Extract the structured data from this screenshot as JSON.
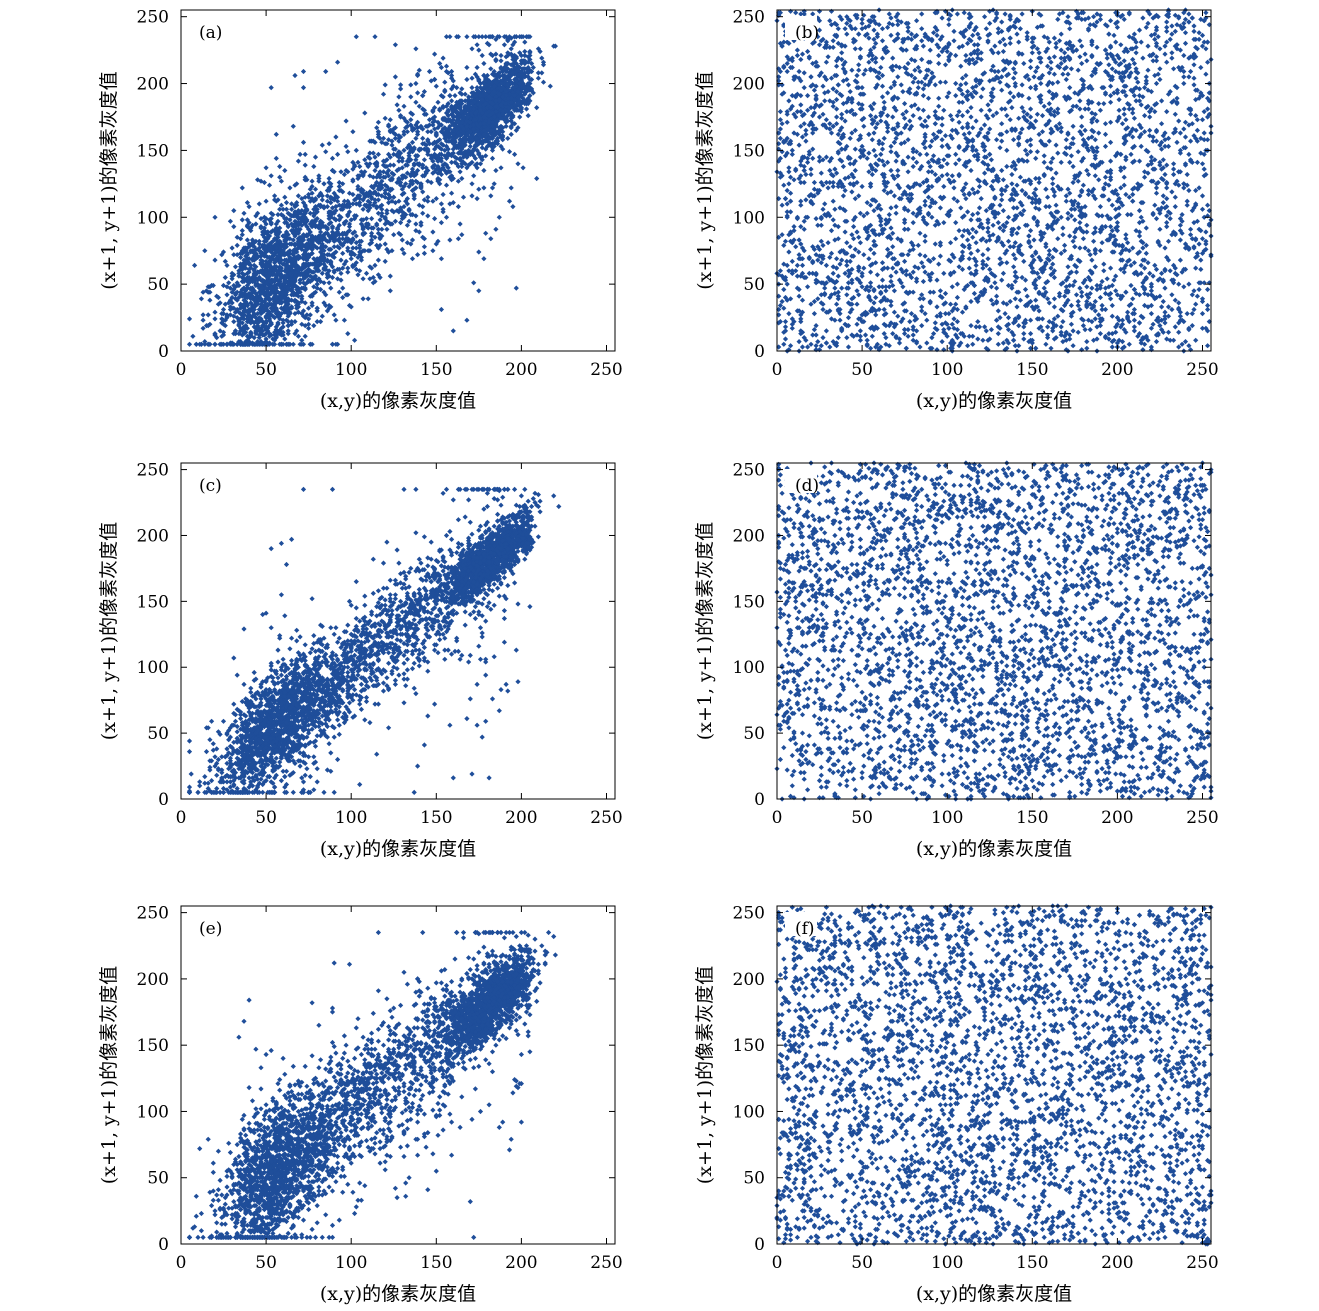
{
  "figure": {
    "point_color": "#1f4e9a",
    "frame_color": "#000000"
  },
  "chart_data": [
    {
      "type": "scatter",
      "panel_label": "(a)",
      "xlabel": "(x,y)的像素灰度值",
      "ylabel": "(x+1, y+1)的像素灰度值",
      "xlim": [
        0,
        255
      ],
      "ylim": [
        0,
        255
      ],
      "xticks": [
        "0",
        "50",
        "100",
        "150",
        "200",
        "250"
      ],
      "yticks": [
        "0",
        "50",
        "100",
        "150",
        "200",
        "250"
      ],
      "grid": false,
      "distribution": "correlated",
      "n_points": 4200,
      "points_summary": {
        "x_range": [
          5,
          220
        ],
        "y_range": [
          5,
          235
        ],
        "trend": "y ≈ x, dense cluster 150–200",
        "spread": 22
      }
    },
    {
      "type": "scatter",
      "panel_label": "(b)",
      "xlabel": "(x,y)的像素灰度值",
      "ylabel": "(x+1, y+1)的像素灰度值",
      "xlim": [
        0,
        255
      ],
      "ylim": [
        0,
        255
      ],
      "xticks": [
        "0",
        "50",
        "100",
        "150",
        "200",
        "250"
      ],
      "yticks": [
        "0",
        "50",
        "100",
        "150",
        "200",
        "250"
      ],
      "grid": false,
      "distribution": "uniform",
      "n_points": 3600,
      "points_summary": {
        "x_range": [
          0,
          255
        ],
        "y_range": [
          0,
          255
        ],
        "trend": "none (uniform)"
      }
    },
    {
      "type": "scatter",
      "panel_label": "(c)",
      "xlabel": "(x,y)的像素灰度值",
      "ylabel": "(x+1, y+1)的像素灰度值",
      "xlim": [
        0,
        255
      ],
      "ylim": [
        0,
        255
      ],
      "xticks": [
        "0",
        "50",
        "100",
        "150",
        "200",
        "250"
      ],
      "yticks": [
        "0",
        "50",
        "100",
        "150",
        "200",
        "250"
      ],
      "grid": false,
      "distribution": "correlated",
      "n_points": 4200,
      "points_summary": {
        "x_range": [
          5,
          220
        ],
        "y_range": [
          5,
          225
        ],
        "trend": "y ≈ x, dense cluster 170–200",
        "spread": 17
      }
    },
    {
      "type": "scatter",
      "panel_label": "(d)",
      "xlabel": "(x,y)的像素灰度值",
      "ylabel": "(x+1, y+1)的像素灰度值",
      "xlim": [
        0,
        255
      ],
      "ylim": [
        0,
        255
      ],
      "xticks": [
        "0",
        "50",
        "100",
        "150",
        "200",
        "250"
      ],
      "yticks": [
        "0",
        "50",
        "100",
        "150",
        "200",
        "250"
      ],
      "grid": false,
      "distribution": "uniform",
      "n_points": 3600,
      "points_summary": {
        "x_range": [
          0,
          255
        ],
        "y_range": [
          0,
          255
        ],
        "trend": "none (uniform)"
      }
    },
    {
      "type": "scatter",
      "panel_label": "(e)",
      "xlabel": "(x,y)的像素灰度值",
      "ylabel": "(x+1, y+1)的像素灰度值",
      "xlim": [
        0,
        255
      ],
      "ylim": [
        0,
        255
      ],
      "xticks": [
        "0",
        "50",
        "100",
        "150",
        "200",
        "250"
      ],
      "yticks": [
        "0",
        "50",
        "100",
        "150",
        "200",
        "250"
      ],
      "grid": false,
      "distribution": "correlated",
      "n_points": 4200,
      "points_summary": {
        "x_range": [
          5,
          220
        ],
        "y_range": [
          5,
          220
        ],
        "trend": "y ≈ x, dense cluster 160–200",
        "spread": 21
      }
    },
    {
      "type": "scatter",
      "panel_label": "(f)",
      "xlabel": "(x,y)的像素灰度值",
      "ylabel": "(x+1, y+1)的像素灰度值",
      "xlim": [
        0,
        255
      ],
      "ylim": [
        0,
        255
      ],
      "xticks": [
        "0",
        "50",
        "100",
        "150",
        "200",
        "250"
      ],
      "yticks": [
        "0",
        "50",
        "100",
        "150",
        "200",
        "250"
      ],
      "grid": false,
      "distribution": "uniform",
      "n_points": 3600,
      "points_summary": {
        "x_range": [
          0,
          255
        ],
        "y_range": [
          0,
          255
        ],
        "trend": "none (uniform)"
      }
    }
  ]
}
